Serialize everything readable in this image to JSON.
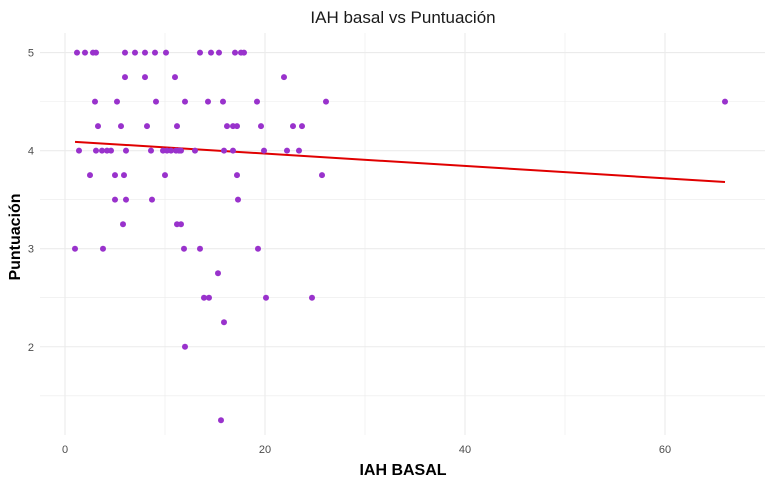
{
  "chart_data": {
    "type": "scatter",
    "title": "IAH basal vs Puntuación",
    "xlabel": "IAH BASAL",
    "ylabel": "Puntuación",
    "xlim": [
      -2.5,
      70
    ],
    "ylim": [
      1.1,
      5.2
    ],
    "x_ticks": [
      0,
      20,
      40,
      60
    ],
    "y_ticks": [
      2,
      3,
      4,
      5
    ],
    "x_minor_ticks": [
      10,
      30,
      50
    ],
    "y_minor_ticks": [
      1.5,
      2.5,
      3.5,
      4.5
    ],
    "grid": true,
    "legend": "none",
    "colors": {
      "points": "#9932CC",
      "trend": "#E00000",
      "grid": "#EBEBEB"
    },
    "series": [
      {
        "points": [
          [
            1.2,
            5.0
          ],
          [
            2.0,
            5.0
          ],
          [
            2.8,
            5.0
          ],
          [
            3.1,
            5.0
          ],
          [
            6.0,
            5.0
          ],
          [
            7.0,
            5.0
          ],
          [
            8.0,
            5.0
          ],
          [
            9.0,
            5.0
          ],
          [
            10.1,
            5.0
          ],
          [
            13.5,
            5.0
          ],
          [
            14.6,
            5.0
          ],
          [
            15.4,
            5.0
          ],
          [
            17.0,
            5.0
          ],
          [
            17.6,
            5.0
          ],
          [
            17.9,
            5.0
          ],
          [
            6.0,
            4.75
          ],
          [
            8.0,
            4.75
          ],
          [
            11.0,
            4.75
          ],
          [
            21.9,
            4.75
          ],
          [
            3.0,
            4.5
          ],
          [
            5.2,
            4.5
          ],
          [
            9.1,
            4.5
          ],
          [
            12.0,
            4.5
          ],
          [
            14.3,
            4.5
          ],
          [
            15.8,
            4.5
          ],
          [
            19.2,
            4.5
          ],
          [
            26.1,
            4.5
          ],
          [
            66.0,
            4.5
          ],
          [
            3.3,
            4.25
          ],
          [
            5.6,
            4.25
          ],
          [
            8.2,
            4.25
          ],
          [
            11.2,
            4.25
          ],
          [
            16.2,
            4.25
          ],
          [
            16.8,
            4.25
          ],
          [
            17.2,
            4.25
          ],
          [
            19.6,
            4.25
          ],
          [
            22.8,
            4.25
          ],
          [
            23.7,
            4.25
          ],
          [
            1.4,
            4.0
          ],
          [
            3.1,
            4.0
          ],
          [
            3.7,
            4.0
          ],
          [
            4.2,
            4.0
          ],
          [
            4.6,
            4.0
          ],
          [
            6.1,
            4.0
          ],
          [
            8.6,
            4.0
          ],
          [
            9.8,
            4.0
          ],
          [
            10.2,
            4.0
          ],
          [
            10.6,
            4.0
          ],
          [
            11.1,
            4.0
          ],
          [
            11.4,
            4.0
          ],
          [
            11.6,
            4.0
          ],
          [
            13.0,
            4.0
          ],
          [
            15.9,
            4.0
          ],
          [
            16.8,
            4.0
          ],
          [
            19.9,
            4.0
          ],
          [
            22.2,
            4.0
          ],
          [
            23.4,
            4.0
          ],
          [
            2.5,
            3.75
          ],
          [
            5.0,
            3.75
          ],
          [
            5.9,
            3.75
          ],
          [
            10.0,
            3.75
          ],
          [
            17.2,
            3.75
          ],
          [
            25.7,
            3.75
          ],
          [
            5.0,
            3.5
          ],
          [
            6.1,
            3.5
          ],
          [
            8.7,
            3.5
          ],
          [
            17.3,
            3.5
          ],
          [
            5.8,
            3.25
          ],
          [
            11.2,
            3.25
          ],
          [
            11.6,
            3.25
          ],
          [
            1.0,
            3.0
          ],
          [
            3.8,
            3.0
          ],
          [
            11.9,
            3.0
          ],
          [
            13.5,
            3.0
          ],
          [
            19.3,
            3.0
          ],
          [
            15.3,
            2.75
          ],
          [
            13.9,
            2.5
          ],
          [
            14.4,
            2.5
          ],
          [
            20.1,
            2.5
          ],
          [
            24.7,
            2.5
          ],
          [
            15.9,
            2.25
          ],
          [
            12.0,
            2.0
          ],
          [
            15.6,
            1.25
          ]
        ]
      }
    ],
    "trend_line": {
      "x": [
        1.0,
        66.0
      ],
      "y": [
        4.09,
        3.68
      ]
    }
  }
}
